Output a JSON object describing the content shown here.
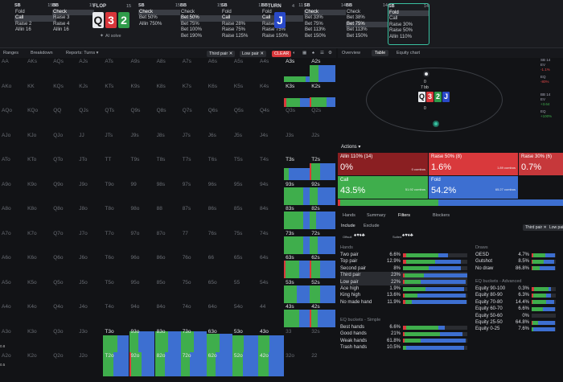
{
  "topbar": {
    "columns": [
      {
        "pos": "SB",
        "stack": "15.5",
        "items": [
          {
            "l": "Fold",
            "sel": false
          },
          {
            "l": "Call",
            "sel": true
          },
          {
            "l": "Raise 2",
            "sel": false
          },
          {
            "l": "Allin 16",
            "sel": false
          }
        ]
      },
      {
        "pos": "BB",
        "stack": "15",
        "items": [
          {
            "l": "Check",
            "sel": true
          },
          {
            "l": "Raise 3",
            "sel": false
          },
          {
            "l": "Raise 4",
            "sel": false
          },
          {
            "l": "Allin 16",
            "sel": false
          }
        ]
      },
      {
        "pos": "SB",
        "stack": "15",
        "items": [
          {
            "l": "Check",
            "sel": true
          },
          {
            "l": "Bet 50%",
            "sel": false
          },
          {
            "l": "Allin 750%",
            "sel": false
          }
        ]
      },
      {
        "pos": "BB",
        "stack": "15",
        "items": [
          {
            "l": "Check",
            "sel": false
          },
          {
            "l": "Bet 50%",
            "sel": true
          },
          {
            "l": "Bet 75%",
            "sel": false
          },
          {
            "l": "Bet 100%",
            "sel": false
          },
          {
            "l": "Bet 190%",
            "sel": false
          }
        ]
      },
      {
        "pos": "SB",
        "stack": "11",
        "items": [
          {
            "l": "Fold",
            "sel": false
          },
          {
            "l": "Call",
            "sel": true
          },
          {
            "l": "Raise 28%",
            "sel": false
          },
          {
            "l": "Raise 75%",
            "sel": false
          },
          {
            "l": "Raise 125%",
            "sel": false
          }
        ]
      },
      {
        "pos": "BB",
        "stack": "11",
        "items": [
          {
            "l": "Fold",
            "sel": false
          },
          {
            "l": "Call",
            "sel": true
          },
          {
            "l": "Raise 37%",
            "sel": false
          },
          {
            "l": "Raise 75%",
            "sel": false
          },
          {
            "l": "Raise 150%",
            "sel": false
          }
        ]
      },
      {
        "pos": "SB",
        "stack": "14",
        "items": [
          {
            "l": "Check",
            "sel": true
          },
          {
            "l": "Bet 33%",
            "sel": false
          },
          {
            "l": "Bet 75%",
            "sel": false
          },
          {
            "l": "Bet 113%",
            "sel": false
          },
          {
            "l": "Bet 150%",
            "sel": false
          }
        ]
      },
      {
        "pos": "BB",
        "stack": "14",
        "items": [
          {
            "l": "Check",
            "sel": false
          },
          {
            "l": "Bet 38%",
            "sel": false
          },
          {
            "l": "Bet 75%",
            "sel": true
          },
          {
            "l": "Bet 113%",
            "sel": false
          },
          {
            "l": "Bet 150%",
            "sel": false
          }
        ]
      },
      {
        "pos": "SB",
        "stack": "14",
        "items": [
          {
            "l": "Fold",
            "sel": true
          },
          {
            "l": "Call",
            "sel": false
          },
          {
            "l": "Raise 30%",
            "sel": false
          },
          {
            "l": "Raise 50%",
            "sel": false
          },
          {
            "l": "Allin 110%",
            "sel": false
          }
        ]
      }
    ],
    "flop_label": "FLOP",
    "flop_stack": "15",
    "ai_solve": "AI solve",
    "turn_label": "TURN",
    "turn_stack": "4",
    "flop_cards": [
      "Q",
      "3",
      "2"
    ],
    "turn_card": "J"
  },
  "tabs": {
    "ranges": "Ranges",
    "breakdown": "Breakdown",
    "reports": "Reports: Turns ▾",
    "third_pair": "Third pair ✕",
    "low_pair": "Low pair ✕",
    "clear": "CLEAR"
  },
  "right_tabs": {
    "overview": "Overview",
    "table": "Table",
    "equity": "Equity chart"
  },
  "grid": [
    [
      "AA",
      "AKs",
      "AQs",
      "AJs",
      "ATs",
      "A9s",
      "A8s",
      "A7s",
      "A6s",
      "A5s",
      "A4s",
      "A3s",
      "A2s"
    ],
    [
      "AKo",
      "KK",
      "KQs",
      "KJs",
      "KTs",
      "K9s",
      "K8s",
      "K7s",
      "K6s",
      "K5s",
      "K4s",
      "K3s",
      "K2s"
    ],
    [
      "AQo",
      "KQo",
      "QQ",
      "QJs",
      "QTs",
      "Q9s",
      "Q8s",
      "Q7s",
      "Q6s",
      "Q5s",
      "Q4s",
      "Q3s",
      "Q2s"
    ],
    [
      "AJo",
      "KJo",
      "QJo",
      "JJ",
      "JTs",
      "J9s",
      "J8s",
      "J7s",
      "J6s",
      "J5s",
      "J4s",
      "J3s",
      "J2s"
    ],
    [
      "ATo",
      "KTo",
      "QTo",
      "JTo",
      "TT",
      "T9s",
      "T8s",
      "T7s",
      "T6s",
      "T5s",
      "T4s",
      "T3s",
      "T2s"
    ],
    [
      "A9o",
      "K9o",
      "Q9o",
      "J9o",
      "T9o",
      "99",
      "98s",
      "97s",
      "96s",
      "95s",
      "94s",
      "93s",
      "92s"
    ],
    [
      "A8o",
      "K8o",
      "Q8o",
      "J8o",
      "T8o",
      "98o",
      "88",
      "87s",
      "86s",
      "85s",
      "84s",
      "83s",
      "82s"
    ],
    [
      "A7o",
      "K7o",
      "Q7o",
      "J7o",
      "T7o",
      "97o",
      "87o",
      "77",
      "76s",
      "75s",
      "74s",
      "73s",
      "72s"
    ],
    [
      "A6o",
      "K6o",
      "Q6o",
      "J6o",
      "T6o",
      "96o",
      "86o",
      "76o",
      "66",
      "65s",
      "64s",
      "63s",
      "62s"
    ],
    [
      "A5o",
      "K5o",
      "Q5o",
      "J5o",
      "T5o",
      "95o",
      "85o",
      "75o",
      "65o",
      "55",
      "54s",
      "53s",
      "52s"
    ],
    [
      "A4o",
      "K4o",
      "Q4o",
      "J4o",
      "T4o",
      "94o",
      "84o",
      "74o",
      "64o",
      "54o",
      "44",
      "43s",
      "42s"
    ],
    [
      "A3o",
      "K3o",
      "Q3o",
      "J3o",
      "T3o",
      "93o",
      "83o",
      "73o",
      "63o",
      "53o",
      "43o",
      "33",
      "32s"
    ],
    [
      "A2o",
      "K2o",
      "Q2o",
      "J2o",
      "T2o",
      "92o",
      "82o",
      "72o",
      "62o",
      "52o",
      "42o",
      "32o",
      "22"
    ]
  ],
  "left_vals": [
    "0.8",
    "0.5"
  ],
  "actions": {
    "header": "Actions ▾",
    "allin": {
      "label": "Allin 110% (14)",
      "pct": "0%",
      "combos": "0 combos"
    },
    "raise50": {
      "label": "Raise 50% (8)",
      "pct": "1.6%",
      "combos": "1.89 combos"
    },
    "raise30": {
      "label": "Raise 30% (6)",
      "pct": "0.7%",
      "combos": "0.81 combos"
    },
    "call": {
      "label": "Call",
      "pct": "43.5%",
      "combos": "51.92 combos"
    },
    "fold": {
      "label": "Fold",
      "pct": "54.2%",
      "combos": "65.27 combos"
    }
  },
  "subtabs": {
    "hands": "Hands",
    "summary": "Summary",
    "filters": "Filters",
    "blockers": "Blockers",
    "include": "Include",
    "exclude": "Exclude",
    "third_pair": "Third pair ✕",
    "low_pair": "Low pair ✕",
    "suited": "Suited",
    "offsuit": "Offsuit"
  },
  "hands_section": {
    "title": "Hands",
    "rows": [
      {
        "n": "Two pair",
        "p": "6.6%",
        "v": [
          0.05,
          0.5,
          0.15
        ]
      },
      {
        "n": "Top pair",
        "p": "12.9%",
        "v": [
          0.05,
          0.45,
          0.4
        ]
      },
      {
        "n": "Second pair",
        "p": "8%",
        "v": [
          0.0,
          0.4,
          0.5
        ]
      },
      {
        "n": "Third pair",
        "p": "23%",
        "v": [
          0.03,
          0.3,
          0.67
        ],
        "hl": true
      },
      {
        "n": "Low pair",
        "p": "22%",
        "v": [
          0.02,
          0.25,
          0.7
        ],
        "hl": true
      },
      {
        "n": "Ace high",
        "p": "1.9%",
        "v": [
          0.0,
          0.35,
          0.6
        ]
      },
      {
        "n": "King high",
        "p": "13.6%",
        "v": [
          0.02,
          0.2,
          0.75
        ]
      },
      {
        "n": "No made hand",
        "p": "11.9%",
        "v": [
          0.04,
          0.1,
          0.85
        ]
      }
    ]
  },
  "eq_simple": {
    "title": "EQ buckets - Simple",
    "rows": [
      {
        "n": "Best hands",
        "p": "6.6%",
        "v": [
          0.05,
          0.5,
          0.1
        ]
      },
      {
        "n": "Good hands",
        "p": "21%",
        "v": [
          0.02,
          0.55,
          0.35
        ]
      },
      {
        "n": "Weak hands",
        "p": "61.8%",
        "v": [
          0.02,
          0.25,
          0.7
        ]
      },
      {
        "n": "Trash hands",
        "p": "10.5%",
        "v": [
          0.0,
          0.05,
          0.9
        ]
      }
    ]
  },
  "draws": {
    "title": "Draws",
    "rows": [
      {
        "n": "OESD",
        "p": "4.7%",
        "v": [
          0.05,
          0.5,
          0.4
        ]
      },
      {
        "n": "Gutshot",
        "p": "8.5%",
        "v": [
          0.04,
          0.45,
          0.45
        ]
      },
      {
        "n": "No draw",
        "p": "86.8%",
        "v": [
          0.02,
          0.3,
          0.65
        ]
      }
    ]
  },
  "eq_adv": {
    "title": "EQ buckets - Advanced",
    "rows": [
      {
        "n": "Equity 90-100",
        "p": "0.3%",
        "v": [
          0.1,
          0.6,
          0.1
        ]
      },
      {
        "n": "Equity 80-90",
        "p": "6.3%",
        "v": [
          0.05,
          0.55,
          0.2
        ]
      },
      {
        "n": "Equity 70-80",
        "p": "14.4%",
        "v": [
          0.04,
          0.55,
          0.35
        ]
      },
      {
        "n": "Equity 60-70",
        "p": "6.6%",
        "v": [
          0.0,
          0.45,
          0.5
        ]
      },
      {
        "n": "Equity 50-60",
        "p": "0%",
        "v": [
          0,
          0,
          0
        ]
      },
      {
        "n": "Equity 25-50",
        "p": "64.8%",
        "v": [
          0.02,
          0.25,
          0.7
        ]
      },
      {
        "n": "Equity 0-25",
        "p": "7.6%",
        "v": [
          0.0,
          0.05,
          0.9
        ]
      }
    ]
  },
  "side_stats": {
    "sb": "SB 14",
    "ev1_label": "EV",
    "ev1": "-1.1%",
    "eq1_label": "EQ",
    "eq1": "-80%",
    "bb": "BB 14",
    "ev2_label": "EV",
    "ev2": "+3.64",
    "eq2_label": "EQ",
    "eq2": "+100%"
  },
  "table": {
    "pot_top": "0",
    "pot_label": "7 bb",
    "pot_bottom": "0"
  },
  "colors": {
    "fold": "#3d6fd1",
    "call": "#3fae4c",
    "raise": "#d9393c",
    "allin": "#8a1f22"
  }
}
